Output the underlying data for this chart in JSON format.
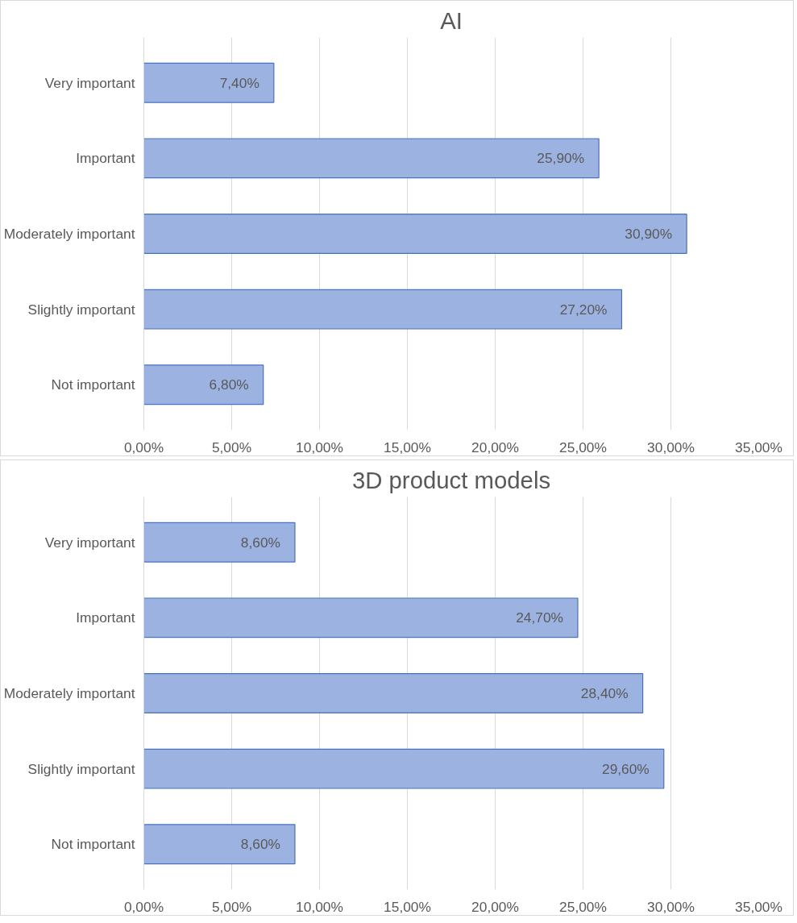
{
  "chart_data": [
    {
      "type": "bar",
      "orientation": "horizontal",
      "title": "AI",
      "categories": [
        "Very important",
        "Important",
        "Moderately important",
        "Slightly important",
        "Not important"
      ],
      "values": [
        7.4,
        25.9,
        30.9,
        27.2,
        6.8
      ],
      "value_labels": [
        "7,40%",
        "25,90%",
        "30,90%",
        "27,20%",
        "6,80%"
      ],
      "color": "#9cb2e0",
      "xlim": [
        0,
        35
      ],
      "xticks": [
        {
          "value": 0,
          "label": "0,00%"
        },
        {
          "value": 5,
          "label": "5,00%"
        },
        {
          "value": 10,
          "label": "10,00%"
        },
        {
          "value": 15,
          "label": "15,00%"
        },
        {
          "value": 20,
          "label": "20,00%"
        },
        {
          "value": 25,
          "label": "25,00%"
        },
        {
          "value": 30,
          "label": "30,00%"
        },
        {
          "value": 35,
          "label": "35,00%"
        }
      ],
      "grid": "x"
    },
    {
      "type": "bar",
      "orientation": "horizontal",
      "title": "3D product models",
      "categories": [
        "Very important",
        "Important",
        "Moderately important",
        "Slightly important",
        "Not important"
      ],
      "values": [
        8.6,
        24.7,
        28.4,
        29.6,
        8.6
      ],
      "value_labels": [
        "8,60%",
        "24,70%",
        "28,40%",
        "29,60%",
        "8,60%"
      ],
      "color": "#9cb2e0",
      "xlim": [
        0,
        35
      ],
      "xticks": [
        {
          "value": 0,
          "label": "0,00%"
        },
        {
          "value": 5,
          "label": "5,00%"
        },
        {
          "value": 10,
          "label": "10,00%"
        },
        {
          "value": 15,
          "label": "15,00%"
        },
        {
          "value": 20,
          "label": "20,00%"
        },
        {
          "value": 25,
          "label": "25,00%"
        },
        {
          "value": 30,
          "label": "30,00%"
        },
        {
          "value": 35,
          "label": "35,00%"
        }
      ],
      "grid": "x"
    }
  ]
}
